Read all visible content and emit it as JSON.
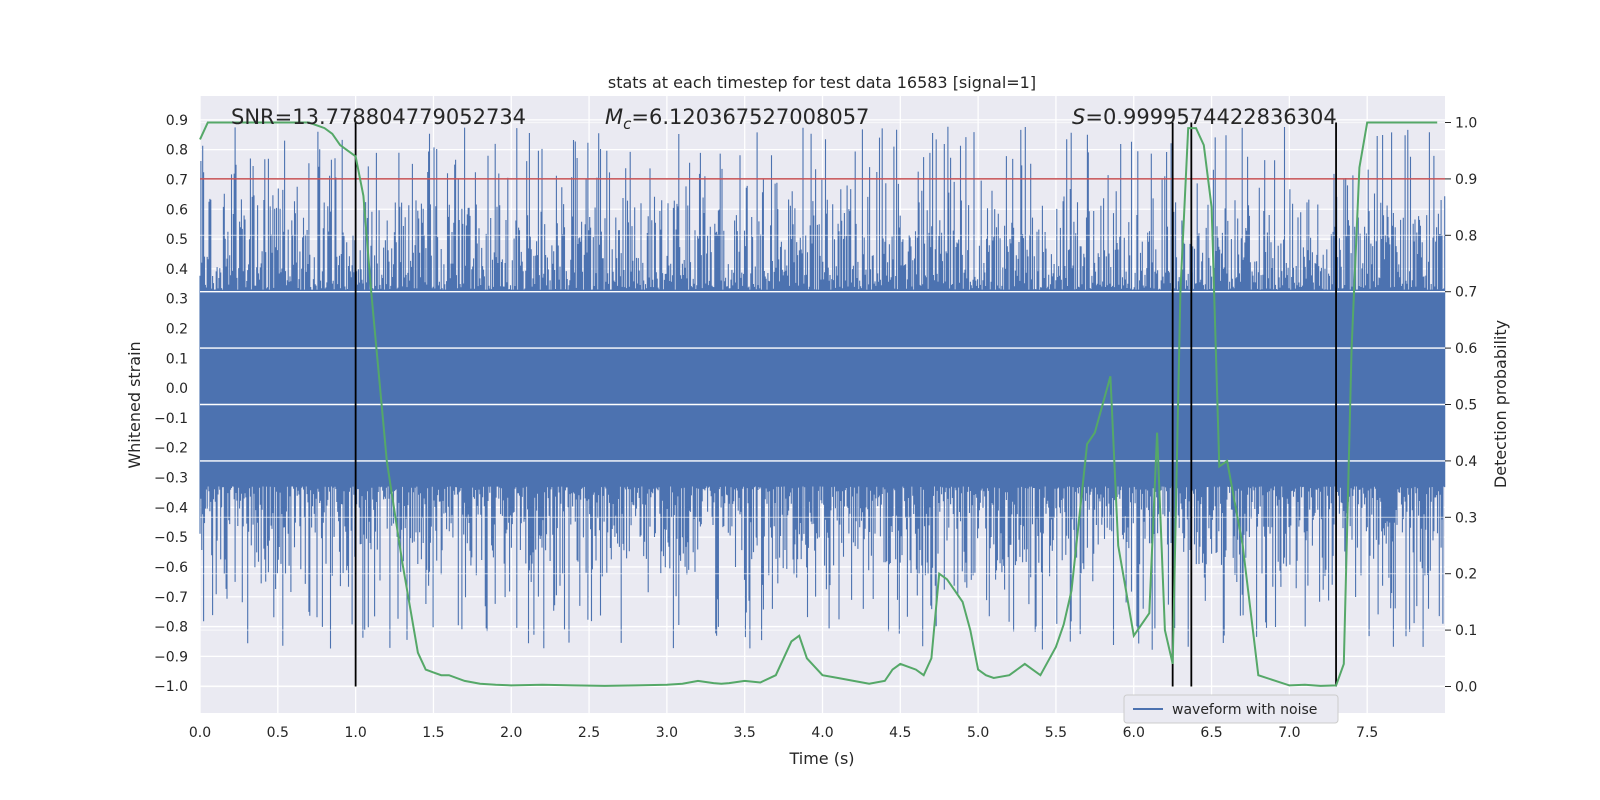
{
  "chart_data": {
    "type": "line",
    "title": "stats at each timestep for test data 16583 [signal=1]",
    "xlabel": "Time (s)",
    "ylabel_left": "Whitened strain",
    "ylabel_right": "Detection probability",
    "xlim": [
      0.0,
      8.0
    ],
    "ylim_left": [
      -1.09,
      0.98
    ],
    "ylim_right": [
      -0.047,
      1.047
    ],
    "x_ticks": [
      "0.0",
      "0.5",
      "1.0",
      "1.5",
      "2.0",
      "2.5",
      "3.0",
      "3.5",
      "4.0",
      "4.5",
      "5.0",
      "5.5",
      "6.0",
      "6.5",
      "7.0",
      "7.5"
    ],
    "y_ticks_left": [
      "0.9",
      "0.8",
      "0.7",
      "0.6",
      "0.5",
      "0.4",
      "0.3",
      "0.2",
      "0.1",
      "0.0",
      "−0.1",
      "−0.2",
      "−0.3",
      "−0.4",
      "−0.5",
      "−0.6",
      "−0.7",
      "−0.8",
      "−0.9",
      "−1.0"
    ],
    "y_ticks_right": [
      "1.0",
      "0.9",
      "0.8",
      "0.7",
      "0.6",
      "0.5",
      "0.4",
      "0.3",
      "0.2",
      "0.1",
      "0.0"
    ],
    "grid": true,
    "annotations": {
      "snr": "SNR=13.778804779052734",
      "mc_prefix": "M",
      "mc_sub": "c",
      "mc_value": "=6.120367527008057",
      "s_prefix": "S",
      "s_value": "=0.9999574422836304"
    },
    "threshold": {
      "probability": 0.9,
      "color": "#c44e52"
    },
    "vertical_lines": [
      1.0,
      6.25,
      6.37,
      7.3
    ],
    "legend": {
      "label": "waveform with noise",
      "position": "lower-right"
    },
    "waveform": {
      "name": "waveform with noise",
      "color": "#4c72b0",
      "core_amplitude": 0.33,
      "typical_amplitude": 0.45,
      "max_amplitude": 0.88
    },
    "probability": {
      "name": "detection probability",
      "color": "#55a868",
      "x": [
        0.0,
        0.05,
        0.1,
        0.2,
        0.3,
        0.4,
        0.5,
        0.6,
        0.7,
        0.8,
        0.85,
        0.9,
        0.95,
        1.0,
        1.05,
        1.1,
        1.2,
        1.3,
        1.35,
        1.4,
        1.45,
        1.5,
        1.55,
        1.6,
        1.7,
        1.8,
        1.9,
        2.0,
        2.2,
        2.4,
        2.6,
        2.8,
        3.0,
        3.1,
        3.2,
        3.3,
        3.35,
        3.4,
        3.5,
        3.6,
        3.7,
        3.75,
        3.8,
        3.85,
        3.9,
        4.0,
        4.1,
        4.2,
        4.3,
        4.4,
        4.45,
        4.5,
        4.6,
        4.65,
        4.7,
        4.75,
        4.8,
        4.85,
        4.9,
        4.95,
        5.0,
        5.05,
        5.1,
        5.2,
        5.3,
        5.35,
        5.4,
        5.5,
        5.55,
        5.6,
        5.7,
        5.75,
        5.8,
        5.85,
        5.9,
        5.95,
        6.0,
        6.1,
        6.15,
        6.2,
        6.25,
        6.3,
        6.35,
        6.4,
        6.45,
        6.5,
        6.55,
        6.6,
        6.7,
        6.8,
        7.0,
        7.1,
        7.2,
        7.3,
        7.35,
        7.4,
        7.45,
        7.5,
        7.6,
        7.7,
        7.8,
        7.9,
        7.95
      ],
      "values": [
        0.97,
        1.0,
        1.0,
        1.0,
        1.0,
        1.0,
        1.0,
        1.0,
        1.0,
        0.99,
        0.98,
        0.96,
        0.95,
        0.94,
        0.87,
        0.7,
        0.4,
        0.22,
        0.14,
        0.06,
        0.03,
        0.025,
        0.02,
        0.02,
        0.01,
        0.005,
        0.003,
        0.002,
        0.003,
        0.002,
        0.001,
        0.002,
        0.003,
        0.005,
        0.01,
        0.006,
        0.005,
        0.006,
        0.01,
        0.007,
        0.02,
        0.05,
        0.08,
        0.09,
        0.05,
        0.02,
        0.015,
        0.01,
        0.005,
        0.01,
        0.03,
        0.04,
        0.03,
        0.02,
        0.05,
        0.2,
        0.19,
        0.17,
        0.15,
        0.1,
        0.03,
        0.02,
        0.015,
        0.02,
        0.04,
        0.03,
        0.02,
        0.07,
        0.11,
        0.17,
        0.43,
        0.45,
        0.5,
        0.55,
        0.25,
        0.17,
        0.09,
        0.13,
        0.45,
        0.1,
        0.04,
        0.7,
        0.99,
        0.99,
        0.96,
        0.85,
        0.39,
        0.4,
        0.25,
        0.02,
        0.002,
        0.003,
        0.001,
        0.002,
        0.04,
        0.6,
        0.92,
        1.0,
        1.0,
        1.0,
        1.0,
        1.0,
        1.0
      ]
    }
  }
}
